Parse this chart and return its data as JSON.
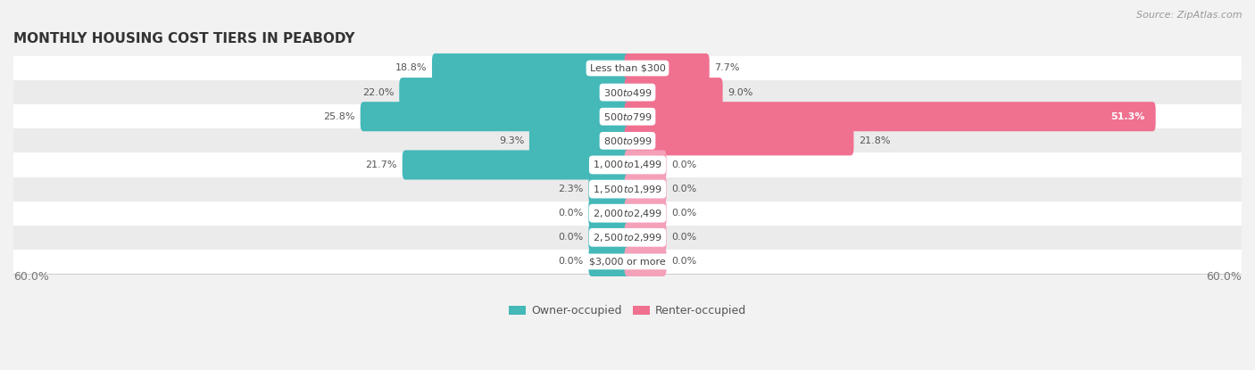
{
  "title": "MONTHLY HOUSING COST TIERS IN PEABODY",
  "source": "Source: ZipAtlas.com",
  "categories": [
    "Less than $300",
    "$300 to $499",
    "$500 to $799",
    "$800 to $999",
    "$1,000 to $1,499",
    "$1,500 to $1,999",
    "$2,000 to $2,499",
    "$2,500 to $2,999",
    "$3,000 or more"
  ],
  "owner_values": [
    18.8,
    22.0,
    25.8,
    9.3,
    21.7,
    2.3,
    0.0,
    0.0,
    0.0
  ],
  "renter_values": [
    7.7,
    9.0,
    51.3,
    21.8,
    0.0,
    0.0,
    0.0,
    0.0,
    0.0
  ],
  "owner_color": "#45b8b8",
  "renter_color": "#f07090",
  "renter_color_light": "#f4a0b8",
  "owner_label": "Owner-occupied",
  "renter_label": "Renter-occupied",
  "axis_limit": 60.0,
  "min_bar_val": 3.5,
  "bg_color": "#f2f2f2",
  "row_colors": [
    "#ffffff",
    "#ebebeb"
  ],
  "title_fontsize": 11,
  "source_fontsize": 8,
  "label_fontsize": 8,
  "value_fontsize": 8,
  "legend_fontsize": 9,
  "axis_label_fontsize": 9
}
